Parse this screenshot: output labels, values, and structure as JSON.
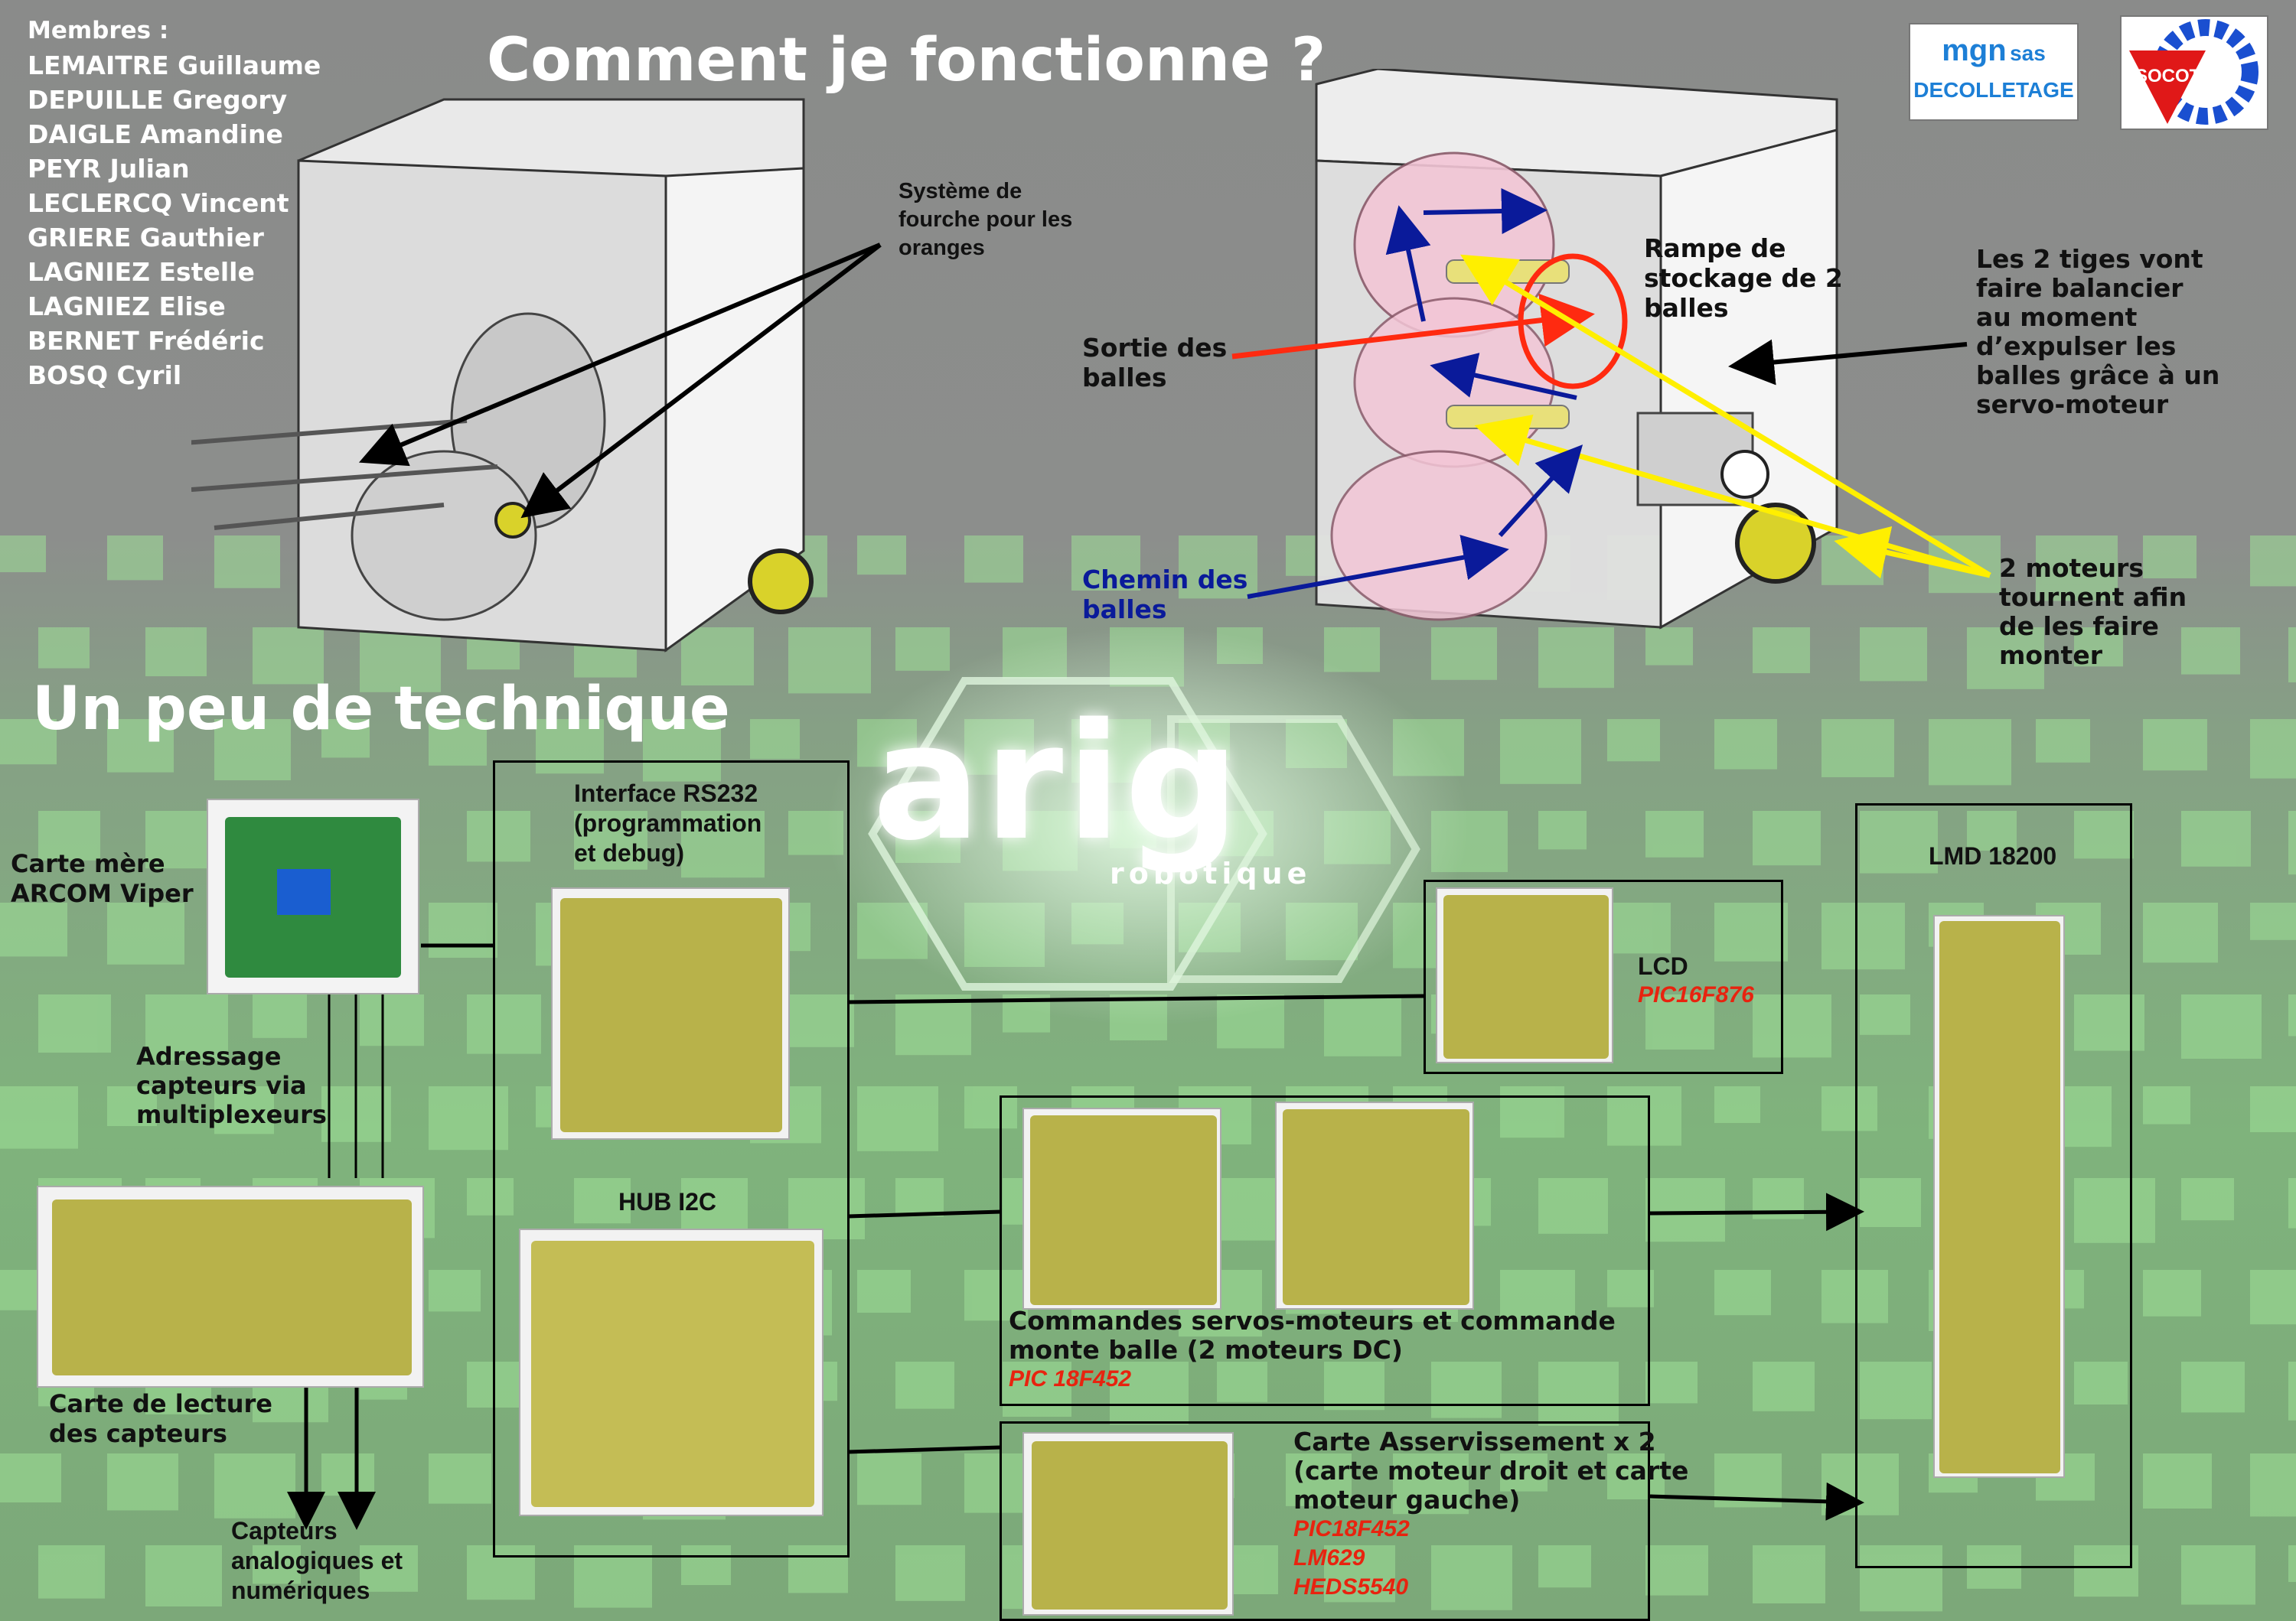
{
  "members": {
    "heading": "Membres :",
    "names": [
      "LEMAITRE Guillaume",
      "DEPUILLE Gregory",
      "DAIGLE Amandine",
      "PEYR Julian",
      "LECLERCQ Vincent",
      "GRIERE Gauthier",
      "LAGNIEZ Estelle",
      "LAGNIEZ Elise",
      "BERNET Frédéric",
      "BOSQ Cyril"
    ]
  },
  "titles": {
    "how_it_works": "Comment je fonctionne ?",
    "technique": "Un peu de technique"
  },
  "logos": {
    "mgn_line1": "mgn",
    "mgn_sas": "sas",
    "mgn_line2": "DECOLLETAGE",
    "socotech": "SOCOTECH",
    "arig": "arig",
    "arig_sub": "robotique"
  },
  "robot_labels": {
    "fork": [
      "Système de",
      "fourche pour les",
      "oranges"
    ],
    "ramp": [
      "Rampe de",
      "stockage de 2",
      "balles"
    ],
    "rods": [
      "Les 2 tiges vont",
      "faire balancier",
      "au moment",
      "d’expulser les",
      "balles grâce à un",
      "servo-moteur"
    ],
    "exit": [
      "Sortie des",
      "balles"
    ],
    "path": [
      "Chemin des",
      "balles"
    ],
    "motors": [
      "2 moteurs",
      "tournent afin",
      "de les faire",
      "monter"
    ]
  },
  "tech": {
    "motherboard": [
      "Carte mère",
      "ARCOM Viper"
    ],
    "addressing": [
      "Adressage",
      "capteurs via",
      "multiplexeurs"
    ],
    "sensor_board": [
      "Carte de lecture",
      "des capteurs"
    ],
    "sensors": [
      "Capteurs",
      "analogiques et",
      "numériques"
    ],
    "rs232": [
      "Interface RS232",
      "(programmation",
      "et debug)"
    ],
    "hub": "HUB I2C",
    "lcd": "LCD",
    "lcd_chip": "PIC16F876",
    "servo": [
      "Commandes servos-moteurs et commande",
      "monte balle (2 moteurs DC)"
    ],
    "servo_chip": "PIC 18F452",
    "asserv": [
      "Carte Asservissement x 2",
      "(carte moteur droit et carte",
      "moteur gauche)"
    ],
    "asserv_chips": [
      "PIC18F452",
      "LM629",
      "HEDS5540"
    ],
    "lmd": "LMD 18200"
  },
  "colors": {
    "background_gray": "#8a8c8a",
    "green_tiles": "#8fe08a",
    "pcb_green": "#b8b24a",
    "arrow_red": "#ff2a10",
    "arrow_yellow": "#ffef00",
    "arrow_blue": "#0a1a9a",
    "chip_red": "#e8230f"
  }
}
